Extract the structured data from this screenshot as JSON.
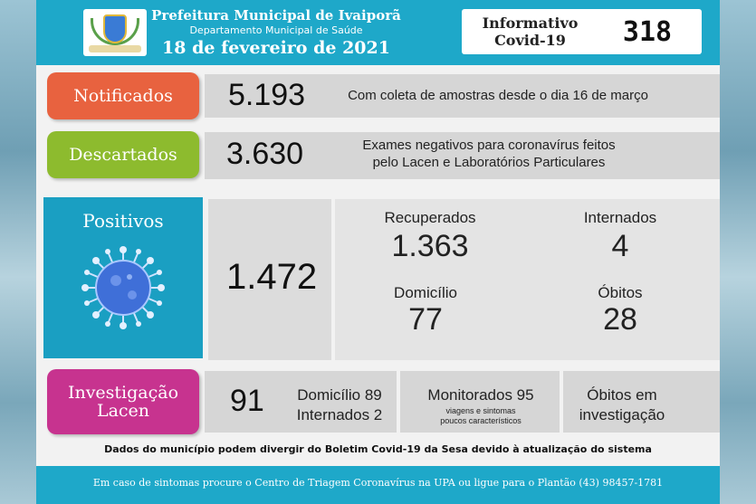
{
  "header": {
    "title": "Prefeitura Municipal de Ivaiporã",
    "subtitle": "Departamento Municipal de Saúde",
    "date": "18 de fevereiro de 2021",
    "info_label": "Informativo Covid-19",
    "info_number": "318"
  },
  "notificados": {
    "label": "Notificados",
    "value": "5.193",
    "description": "Com coleta de amostras desde o dia 16 de março",
    "color": "#e8623f"
  },
  "descartados": {
    "label": "Descartados",
    "value": "3.630",
    "description_line1": "Exames negativos para coronavírus feitos",
    "description_line2": "pelo Lacen e Laboratórios Particulares",
    "color": "#8dbb2e"
  },
  "positivos": {
    "label": "Positivos",
    "value": "1.472",
    "recuperados_label": "Recuperados",
    "recuperados_value": "1.363",
    "internados_label": "Internados",
    "internados_value": "4",
    "domicilio_label": "Domicílio",
    "domicilio_value": "77",
    "obitos_label": "Óbitos",
    "obitos_value": "28",
    "color": "#1a9fc2"
  },
  "investigacao": {
    "label_line1": "Investigação",
    "label_line2": "Lacen",
    "value": "91",
    "domicilio": "Domicílio 89",
    "internados": "Internados 2",
    "monitorados": "Monitorados 95",
    "monitorados_note_line1": "viagens e sintomas",
    "monitorados_note_line2": "poucos característicos",
    "obitos_line1": "Óbitos em",
    "obitos_line2": "investigação",
    "color": "#c7338f"
  },
  "footer": {
    "note": "Dados do município podem divergir do Boletim Covid-19 da Sesa devido à atualização do sistema",
    "contact": "Em caso de sintomas procure o Centro de Triagem Coronavírus na UPA ou ligue para o Plantão (43) 98457-1781"
  },
  "icons": {
    "crest": "municipal-crest-icon",
    "virus": "coronavirus-icon"
  }
}
